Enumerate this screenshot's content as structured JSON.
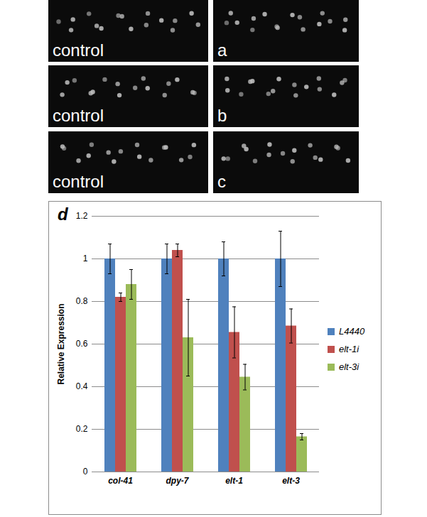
{
  "chart_data": {
    "type": "bar",
    "title": "d",
    "categories": [
      "col-41",
      "dpy-7",
      "elt-1",
      "elt-3"
    ],
    "series": [
      {
        "name": "L4440",
        "color": "#4f81bd",
        "values": [
          1.0,
          1.0,
          1.0,
          1.0
        ],
        "errors": [
          0.07,
          0.07,
          0.08,
          0.13
        ]
      },
      {
        "name": "elt-1i",
        "color": "#c0504d",
        "values": [
          0.82,
          1.04,
          0.655,
          0.685
        ],
        "errors": [
          0.02,
          0.03,
          0.12,
          0.08
        ]
      },
      {
        "name": "elt-3i",
        "color": "#9bbb59",
        "values": [
          0.88,
          0.63,
          0.445,
          0.165
        ],
        "errors": [
          0.07,
          0.18,
          0.06,
          0.015
        ]
      }
    ],
    "y_label": "Relative Expression",
    "ylim": [
      0,
      1.2
    ],
    "yticks": [
      0,
      0.2,
      0.4,
      0.6,
      0.8,
      1,
      1.2
    ],
    "grid": true,
    "legend": "right"
  },
  "micrographs": [
    {
      "left": "control",
      "right": "a"
    },
    {
      "left": "control",
      "right": "b"
    },
    {
      "left": "control",
      "right": "c"
    }
  ]
}
